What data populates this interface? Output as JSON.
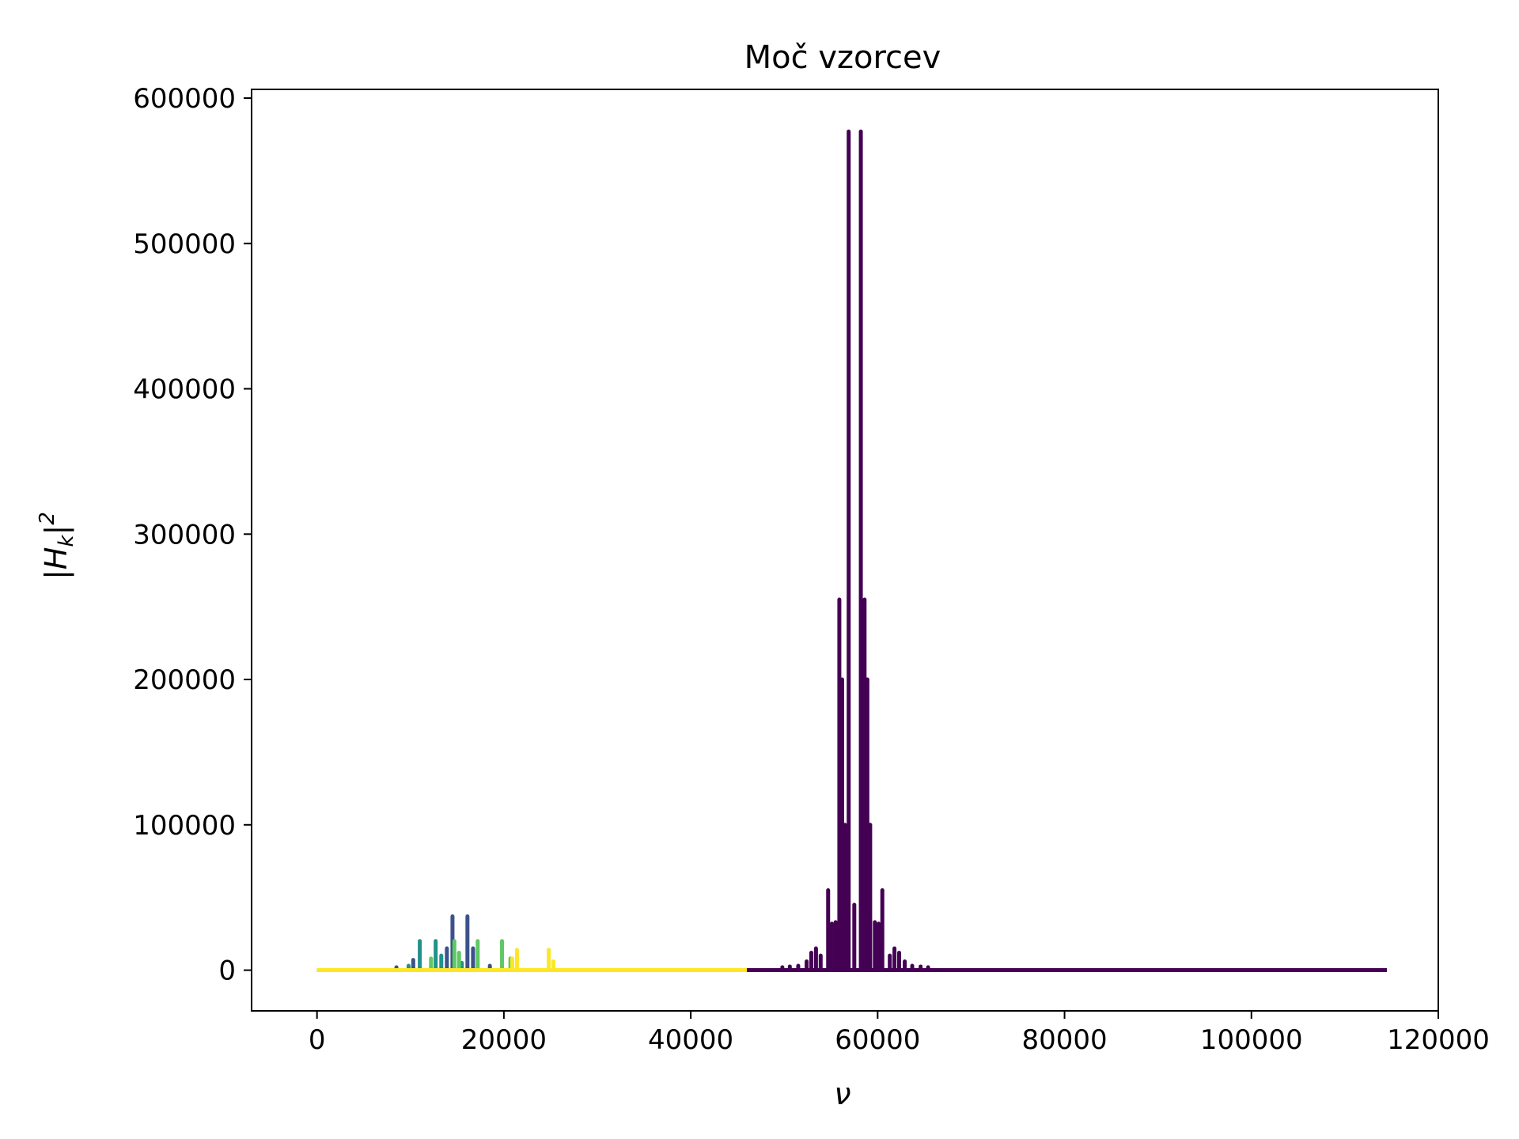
{
  "chart_data": {
    "type": "line",
    "title": "Moč vzorcev",
    "xlabel": "ν",
    "ylabel_base": "|H",
    "ylabel_sub": "k",
    "ylabel_tail": "|",
    "ylabel_sup": "2",
    "xlim": [
      -7000,
      120000
    ],
    "ylim": [
      -28000,
      606000
    ],
    "x_ticks": [
      {
        "value": 0,
        "label": "0"
      },
      {
        "value": 20000,
        "label": "20000"
      },
      {
        "value": 40000,
        "label": "40000"
      },
      {
        "value": 60000,
        "label": "60000"
      },
      {
        "value": 80000,
        "label": "80000"
      },
      {
        "value": 100000,
        "label": "100000"
      },
      {
        "value": 120000,
        "label": "120000"
      }
    ],
    "y_ticks": [
      {
        "value": 0,
        "label": "0"
      },
      {
        "value": 100000,
        "label": "100000"
      },
      {
        "value": 200000,
        "label": "200000"
      },
      {
        "value": 300000,
        "label": "300000"
      },
      {
        "value": 400000,
        "label": "400000"
      },
      {
        "value": 500000,
        "label": "500000"
      },
      {
        "value": 600000,
        "label": "600000"
      }
    ],
    "grid": false,
    "series": [
      {
        "color": "#440154",
        "baseline_range": [
          46000,
          114500
        ],
        "peaks": [
          [
            49800,
            2000
          ],
          [
            50600,
            2500
          ],
          [
            51500,
            3000
          ],
          [
            52400,
            6000
          ],
          [
            52900,
            12000
          ],
          [
            53400,
            15000
          ],
          [
            53900,
            10000
          ],
          [
            54700,
            55000
          ],
          [
            55100,
            32000
          ],
          [
            55500,
            33000
          ],
          [
            55900,
            255000
          ],
          [
            56200,
            200000
          ],
          [
            56500,
            100000
          ],
          [
            56900,
            577000
          ],
          [
            57500,
            45000
          ],
          [
            58200,
            577000
          ],
          [
            58600,
            255000
          ],
          [
            58900,
            200000
          ],
          [
            59200,
            100000
          ],
          [
            59700,
            33000
          ],
          [
            60100,
            32000
          ],
          [
            60500,
            55000
          ],
          [
            61300,
            10000
          ],
          [
            61800,
            15000
          ],
          [
            62300,
            12000
          ],
          [
            62900,
            6000
          ],
          [
            63700,
            3000
          ],
          [
            64600,
            2500
          ],
          [
            65400,
            2000
          ]
        ]
      },
      {
        "color": "#3b528b",
        "baseline_range": [
          0,
          30000
        ],
        "peaks": [
          [
            8500,
            2000
          ],
          [
            10300,
            7000
          ],
          [
            13900,
            15000
          ],
          [
            14500,
            37000
          ],
          [
            16100,
            37000
          ],
          [
            16700,
            15000
          ],
          [
            18500,
            3000
          ]
        ]
      },
      {
        "color": "#21918c",
        "baseline_range": [
          0,
          30000
        ],
        "peaks": [
          [
            9800,
            3000
          ],
          [
            11000,
            20000
          ],
          [
            12700,
            20000
          ],
          [
            13300,
            10000
          ],
          [
            15500,
            5000
          ]
        ]
      },
      {
        "color": "#5ec962",
        "baseline_range": [
          0,
          30000
        ],
        "peaks": [
          [
            12200,
            8000
          ],
          [
            14700,
            20000
          ],
          [
            15200,
            12000
          ],
          [
            17200,
            20000
          ],
          [
            19800,
            20000
          ],
          [
            20700,
            8000
          ]
        ]
      },
      {
        "color": "#fde725",
        "baseline_range": [
          0,
          46000
        ],
        "peaks": [
          [
            20900,
            8000
          ],
          [
            21400,
            14000
          ],
          [
            24800,
            14000
          ],
          [
            25300,
            6000
          ]
        ]
      }
    ]
  }
}
